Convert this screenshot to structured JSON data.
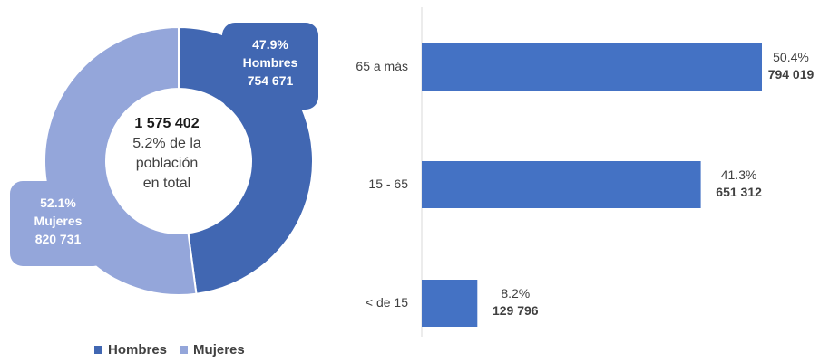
{
  "chart_data": [
    {
      "type": "pie",
      "donut": true,
      "center": {
        "total": "1 575 402",
        "lines": [
          "5.2% de la",
          "población",
          "en total"
        ]
      },
      "slices": [
        {
          "name": "Hombres",
          "percent_label": "47.9%",
          "value": 754671,
          "value_label": "754 671",
          "color": "#4167b2"
        },
        {
          "name": "Mujeres",
          "percent_label": "52.1%",
          "value": 820731,
          "value_label": "820 731",
          "color": "#94a6da"
        }
      ],
      "legend": {
        "position": "bottom",
        "entries": [
          "Hombres",
          "Mujeres"
        ]
      }
    },
    {
      "type": "bar",
      "orientation": "horizontal",
      "categories": [
        "65 a más",
        "15 - 65",
        "< de 15"
      ],
      "values": [
        794019,
        651312,
        129796
      ],
      "value_labels": [
        "794 019",
        "651 312",
        "129 796"
      ],
      "percent_labels": [
        "50.4%",
        "41.3%",
        "8.2%"
      ],
      "color": "#4472c4",
      "xlim": [
        0,
        794019
      ]
    }
  ]
}
